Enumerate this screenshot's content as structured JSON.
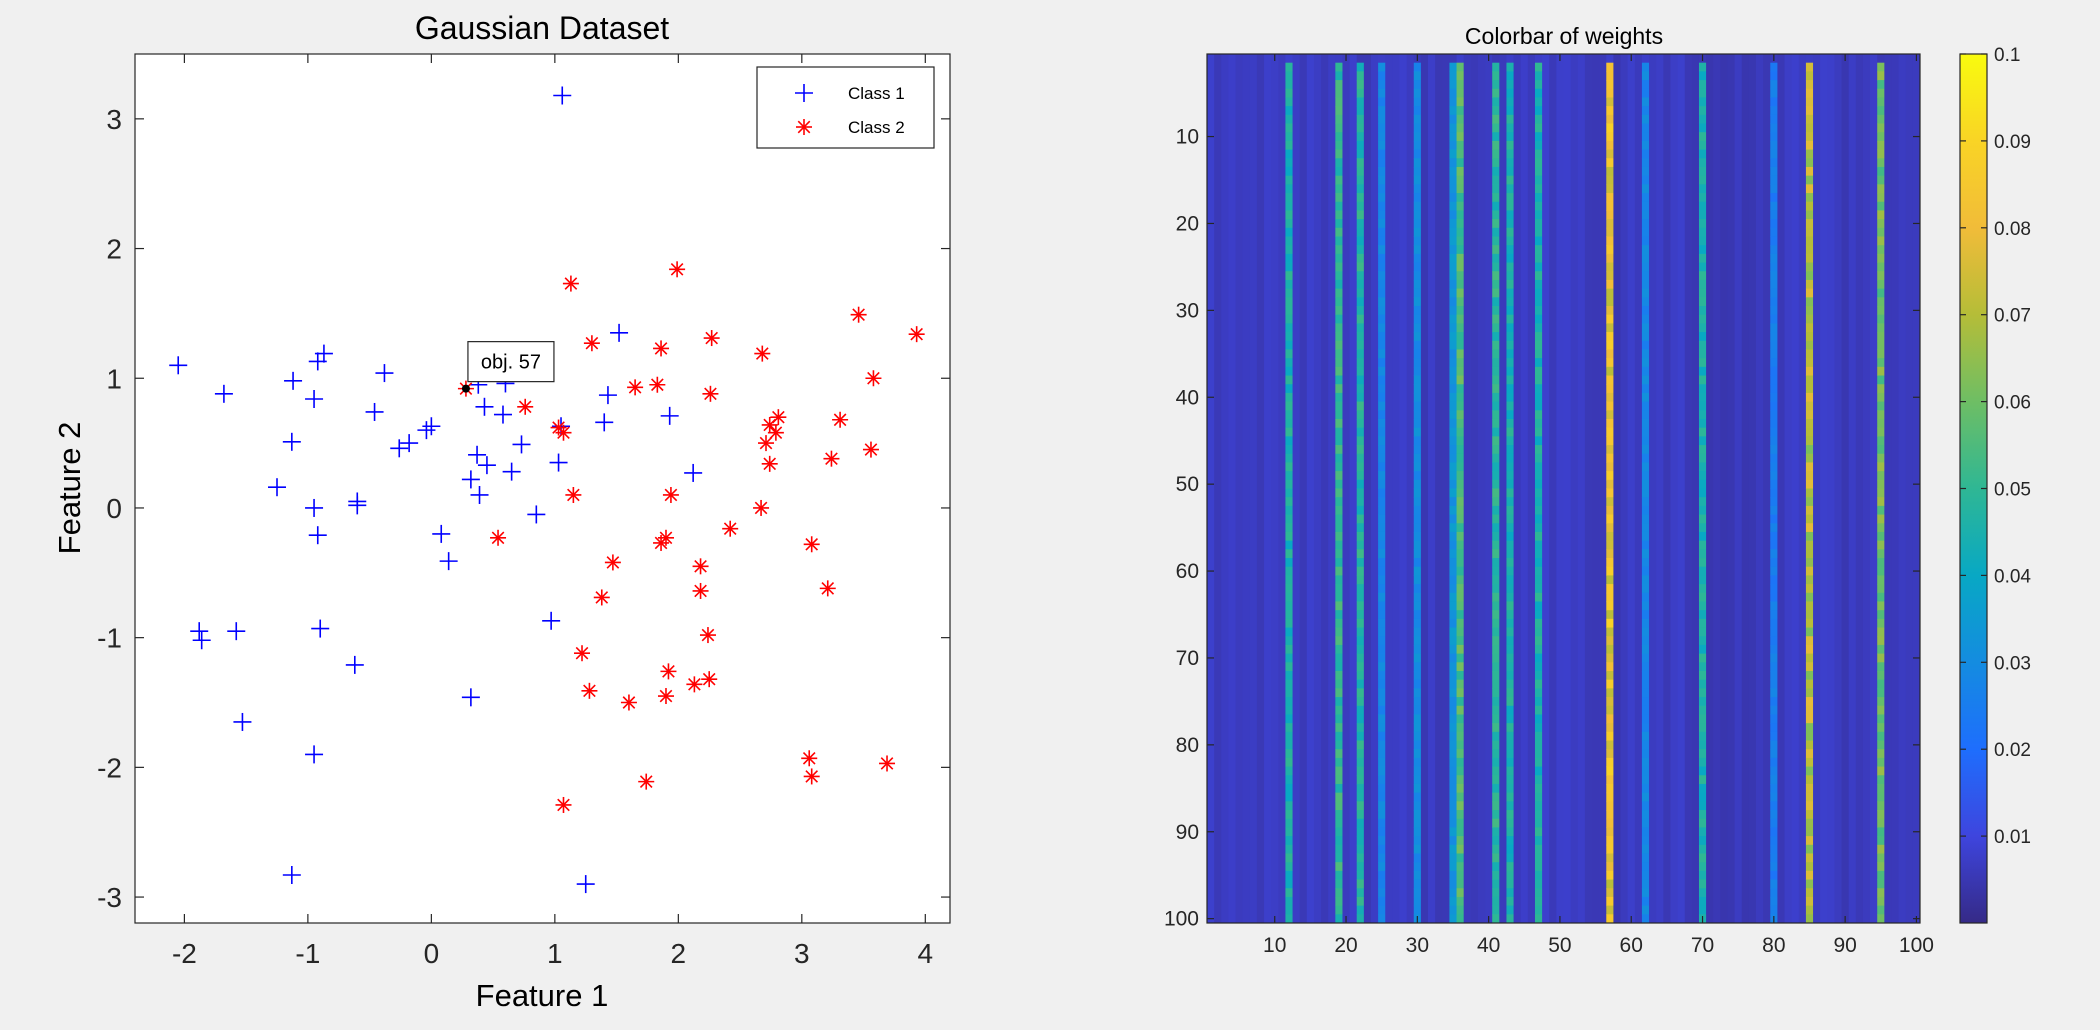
{
  "chart_data": [
    {
      "type": "scatter",
      "title": "Gaussian Dataset",
      "xlabel": "Feature 1",
      "ylabel": "Feature 2",
      "xlim": [
        -2.4,
        4.2
      ],
      "ylim": [
        -3.2,
        3.5
      ],
      "xticks": [
        -2,
        -1,
        0,
        1,
        2,
        3,
        4
      ],
      "yticks": [
        -3,
        -2,
        -1,
        0,
        1,
        2,
        3
      ],
      "grid": false,
      "legend_position": "top-right",
      "series": [
        {
          "name": "Class 1",
          "marker": "plus",
          "color": "#0000ff",
          "points": [
            [
              -2.05,
              1.1
            ],
            [
              -1.68,
              0.88
            ],
            [
              -1.12,
              0.98
            ],
            [
              -1.13,
              0.51
            ],
            [
              -0.95,
              0.84
            ],
            [
              -0.92,
              1.13
            ],
            [
              -0.87,
              1.19
            ],
            [
              -0.38,
              1.04
            ],
            [
              -0.46,
              0.74
            ],
            [
              -0.26,
              0.46
            ],
            [
              -0.18,
              0.5
            ],
            [
              -0.04,
              0.6
            ],
            [
              0.0,
              0.63
            ],
            [
              -1.25,
              0.16
            ],
            [
              -0.95,
              0.0
            ],
            [
              -0.92,
              -0.21
            ],
            [
              -0.6,
              0.05
            ],
            [
              -0.6,
              0.02
            ],
            [
              0.08,
              -0.2
            ],
            [
              0.14,
              -0.41
            ],
            [
              -1.88,
              -0.95
            ],
            [
              -1.86,
              -1.02
            ],
            [
              -1.58,
              -0.95
            ],
            [
              -0.9,
              -0.93
            ],
            [
              -0.62,
              -1.21
            ],
            [
              -1.53,
              -1.65
            ],
            [
              -0.95,
              -1.9
            ],
            [
              -1.13,
              -2.83
            ],
            [
              0.32,
              -1.46
            ],
            [
              0.97,
              -0.87
            ],
            [
              0.85,
              -0.05
            ],
            [
              0.32,
              0.22
            ],
            [
              0.37,
              0.41
            ],
            [
              0.39,
              0.1
            ],
            [
              0.45,
              0.33
            ],
            [
              0.43,
              0.78
            ],
            [
              0.58,
              0.72
            ],
            [
              0.65,
              0.28
            ],
            [
              0.73,
              0.49
            ],
            [
              1.03,
              0.35
            ],
            [
              1.05,
              0.63
            ],
            [
              1.4,
              0.66
            ],
            [
              1.43,
              0.87
            ],
            [
              1.52,
              1.35
            ],
            [
              1.93,
              0.71
            ],
            [
              2.12,
              0.27
            ],
            [
              1.06,
              3.18
            ],
            [
              1.25,
              -2.9
            ],
            [
              0.38,
              0.95
            ],
            [
              0.6,
              0.96
            ]
          ]
        },
        {
          "name": "Class 2",
          "marker": "asterisk",
          "color": "#ff0000",
          "points": [
            [
              1.13,
              1.73
            ],
            [
              1.99,
              1.84
            ],
            [
              1.3,
              1.27
            ],
            [
              1.86,
              1.23
            ],
            [
              2.27,
              1.31
            ],
            [
              2.68,
              1.19
            ],
            [
              3.46,
              1.49
            ],
            [
              3.93,
              1.34
            ],
            [
              3.58,
              1.0
            ],
            [
              1.65,
              0.93
            ],
            [
              1.83,
              0.95
            ],
            [
              2.26,
              0.88
            ],
            [
              0.76,
              0.78
            ],
            [
              1.03,
              0.62
            ],
            [
              1.07,
              0.58
            ],
            [
              2.74,
              0.64
            ],
            [
              2.81,
              0.7
            ],
            [
              2.71,
              0.5
            ],
            [
              2.79,
              0.58
            ],
            [
              3.31,
              0.68
            ],
            [
              2.74,
              0.34
            ],
            [
              3.24,
              0.38
            ],
            [
              3.56,
              0.45
            ],
            [
              1.15,
              0.1
            ],
            [
              1.94,
              0.1
            ],
            [
              2.67,
              0.0
            ],
            [
              2.42,
              -0.16
            ],
            [
              0.54,
              -0.23
            ],
            [
              1.47,
              -0.42
            ],
            [
              1.86,
              -0.27
            ],
            [
              1.9,
              -0.23
            ],
            [
              3.08,
              -0.28
            ],
            [
              2.18,
              -0.45
            ],
            [
              1.38,
              -0.69
            ],
            [
              2.18,
              -0.64
            ],
            [
              3.21,
              -0.62
            ],
            [
              2.24,
              -0.98
            ],
            [
              1.22,
              -1.12
            ],
            [
              1.92,
              -1.26
            ],
            [
              1.28,
              -1.41
            ],
            [
              1.6,
              -1.5
            ],
            [
              1.9,
              -1.45
            ],
            [
              2.13,
              -1.36
            ],
            [
              2.25,
              -1.32
            ],
            [
              3.06,
              -1.93
            ],
            [
              3.08,
              -2.07
            ],
            [
              3.69,
              -1.97
            ],
            [
              1.74,
              -2.11
            ],
            [
              1.07,
              -2.29
            ],
            [
              0.28,
              0.92
            ]
          ]
        }
      ],
      "annotations": [
        {
          "text": "obj. 57",
          "x": 0.28,
          "y": 0.92
        }
      ]
    },
    {
      "type": "heatmap",
      "title": "Colorbar of weights",
      "xlabel": "",
      "ylabel": "",
      "xlim": [
        1,
        100
      ],
      "ylim": [
        1,
        100
      ],
      "xticks": [
        10,
        20,
        30,
        40,
        50,
        60,
        70,
        80,
        90,
        100
      ],
      "yticks": [
        10,
        20,
        30,
        40,
        50,
        60,
        70,
        80,
        90,
        100
      ],
      "yaxis_reversed": true,
      "colormap": "parula",
      "clim": [
        0,
        0.1
      ],
      "colorbar_ticks": [
        0.01,
        0.02,
        0.03,
        0.04,
        0.05,
        0.06,
        0.07,
        0.08,
        0.09,
        0.1
      ],
      "base_value": 0.006,
      "column_values": [
        {
          "column": 12,
          "value": 0.045
        },
        {
          "column": 19,
          "value": 0.05
        },
        {
          "column": 22,
          "value": 0.047
        },
        {
          "column": 25,
          "value": 0.028
        },
        {
          "column": 30,
          "value": 0.03
        },
        {
          "column": 35,
          "value": 0.033
        },
        {
          "column": 36,
          "value": 0.055
        },
        {
          "column": 41,
          "value": 0.048
        },
        {
          "column": 43,
          "value": 0.045
        },
        {
          "column": 47,
          "value": 0.045
        },
        {
          "column": 57,
          "value": 0.08
        },
        {
          "column": 62,
          "value": 0.028
        },
        {
          "column": 70,
          "value": 0.045
        },
        {
          "column": 80,
          "value": 0.025
        },
        {
          "column": 85,
          "value": 0.07
        },
        {
          "column": 95,
          "value": 0.06
        }
      ]
    }
  ]
}
